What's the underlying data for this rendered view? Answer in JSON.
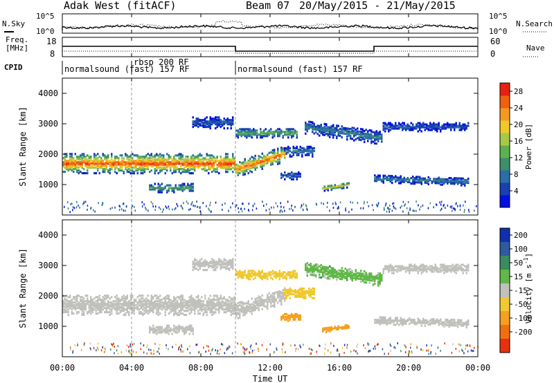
{
  "header": {
    "title": "Adak West (fitACF)",
    "beam": "Beam 07",
    "dates": "20/May/2015 - 21/May/2015"
  },
  "noise_panel": {
    "left_label": "N.Sky",
    "right_label": "N.Search",
    "left_ticks": [
      "10^5",
      "10^0"
    ],
    "right_ticks": [
      "10^5",
      "10^0"
    ]
  },
  "freq_panel": {
    "left_label_line1": "Freq.",
    "left_label_line2": "[MHz]",
    "right_label": "Nave",
    "left_ticks": [
      "18",
      "8"
    ],
    "right_ticks": [
      "60",
      "0"
    ]
  },
  "cpid": {
    "label": "CPID",
    "segments": [
      {
        "text": "normalsound (fast) 157 RF",
        "start_hour": 0
      },
      {
        "text": "rbsp 200 RF",
        "start_hour": 4
      },
      {
        "text": "normalsound (fast) 157 RF",
        "start_hour": 10
      }
    ]
  },
  "x_axis": {
    "label": "Time UT",
    "ticks": [
      "00:00",
      "04:00",
      "08:00",
      "12:00",
      "16:00",
      "20:00",
      "00:00"
    ],
    "tick_hours": [
      0,
      4,
      8,
      12,
      16,
      20,
      24
    ]
  },
  "colors": {
    "ground_scatter": "#c0c0bc"
  },
  "chart_data": [
    {
      "type": "heatmap",
      "name": "power",
      "ylabel": "Slant Range [km]",
      "ylim": [
        0,
        4500
      ],
      "xlim_hours": [
        0,
        24
      ],
      "y_ticks": [
        "1000",
        "2000",
        "3000",
        "4000"
      ],
      "y_tick_values": [
        1000,
        2000,
        3000,
        4000
      ],
      "colorbar": {
        "label": "Power [dB]",
        "ticks": [
          "4",
          "8",
          "12",
          "16",
          "20",
          "24",
          "28"
        ],
        "tick_values": [
          4,
          8,
          12,
          16,
          20,
          24,
          28
        ],
        "range": [
          0,
          30
        ],
        "stops": [
          "#0010e0",
          "#1840b0",
          "#2b6ea8",
          "#3c8f6a",
          "#5db04e",
          "#a8c848",
          "#f0c828",
          "#f59a20",
          "#f06010",
          "#e82010"
        ]
      },
      "echo_regions": [
        {
          "t0": 0.0,
          "t1": 9.9,
          "r_center": 1700,
          "r_width": 650,
          "peak": 27,
          "tilt": -0.3
        },
        {
          "t0": 10.0,
          "t1": 12.8,
          "r_center": 1500,
          "r_width": 500,
          "peak": 26,
          "tilt": 180
        },
        {
          "t0": 12.8,
          "t1": 14.5,
          "r_center": 2100,
          "r_width": 350,
          "peak": 8,
          "tilt": 0
        },
        {
          "t0": 10.0,
          "t1": 13.5,
          "r_center": 2700,
          "r_width": 300,
          "peak": 14,
          "tilt": 0
        },
        {
          "t0": 14.0,
          "t1": 18.5,
          "r_center": 2900,
          "r_width": 450,
          "peak": 9,
          "tilt": -80
        },
        {
          "t0": 12.6,
          "t1": 13.7,
          "r_center": 1300,
          "r_width": 250,
          "peak": 7,
          "tilt": 0
        },
        {
          "t0": 15.0,
          "t1": 16.6,
          "r_center": 880,
          "r_width": 180,
          "peak": 18,
          "tilt": 80
        },
        {
          "t0": 18.0,
          "t1": 23.5,
          "r_center": 1200,
          "r_width": 250,
          "peak": 9,
          "tilt": -20
        },
        {
          "t0": 5.0,
          "t1": 7.5,
          "r_center": 900,
          "r_width": 300,
          "peak": 12,
          "tilt": 0
        },
        {
          "t0": 7.5,
          "t1": 9.8,
          "r_center": 3050,
          "r_width": 400,
          "peak": 6,
          "tilt": 0
        },
        {
          "t0": 18.5,
          "t1": 23.5,
          "r_center": 2900,
          "r_width": 300,
          "peak": 6,
          "tilt": 0
        }
      ]
    },
    {
      "type": "heatmap",
      "name": "velocity",
      "ylabel": "Slant Range [km]",
      "ylim": [
        0,
        4500
      ],
      "xlim_hours": [
        0,
        24
      ],
      "y_ticks": [
        "1000",
        "2000",
        "3000",
        "4000"
      ],
      "y_tick_values": [
        1000,
        2000,
        3000,
        4000
      ],
      "colorbar": {
        "label": "Velocity [m s^-1]",
        "ticks": [
          "200",
          "100",
          "50",
          "15",
          "-15",
          "-50",
          "-100",
          "-200"
        ],
        "tick_values": [
          200,
          100,
          50,
          15,
          -15,
          -50,
          -100,
          -200
        ],
        "colors_top_to_bottom": [
          "#1030b0",
          "#2e5aa0",
          "#3b8a60",
          "#60b848",
          "#c0c0bc",
          "#f0c830",
          "#f5a020",
          "#f07010",
          "#e83010"
        ]
      },
      "echo_regions": [
        {
          "t0": 0.0,
          "t1": 9.9,
          "r_center": 1700,
          "r_width": 650,
          "velocity": 0,
          "tilt": -0.3
        },
        {
          "t0": 10.0,
          "t1": 12.8,
          "r_center": 1500,
          "r_width": 500,
          "velocity": 0,
          "tilt": 180
        },
        {
          "t0": 12.8,
          "t1": 14.5,
          "r_center": 2100,
          "r_width": 350,
          "velocity": -40,
          "tilt": 0
        },
        {
          "t0": 10.0,
          "t1": 13.5,
          "r_center": 2700,
          "r_width": 300,
          "velocity": -30,
          "tilt": 0
        },
        {
          "t0": 14.0,
          "t1": 18.5,
          "r_center": 2900,
          "r_width": 450,
          "velocity": 20,
          "tilt": -80
        },
        {
          "t0": 12.6,
          "t1": 13.7,
          "r_center": 1300,
          "r_width": 250,
          "velocity": -80,
          "tilt": 0
        },
        {
          "t0": 15.0,
          "t1": 16.6,
          "r_center": 880,
          "r_width": 180,
          "velocity": -60,
          "tilt": 80
        },
        {
          "t0": 18.0,
          "t1": 23.5,
          "r_center": 1200,
          "r_width": 250,
          "velocity": 0,
          "tilt": -20
        },
        {
          "t0": 5.0,
          "t1": 7.5,
          "r_center": 900,
          "r_width": 300,
          "velocity": 0,
          "tilt": 0
        },
        {
          "t0": 7.5,
          "t1": 9.8,
          "r_center": 3050,
          "r_width": 400,
          "velocity": 0,
          "tilt": 0
        },
        {
          "t0": 18.5,
          "t1": 23.5,
          "r_center": 2900,
          "r_width": 300,
          "velocity": 0,
          "tilt": 0
        }
      ]
    }
  ]
}
